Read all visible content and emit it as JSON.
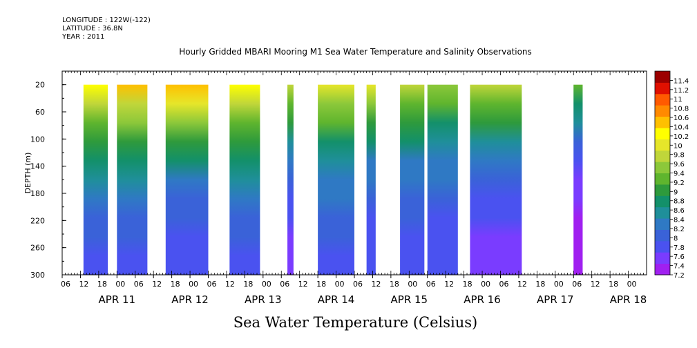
{
  "header": {
    "longitude": "LONGITUDE : 122W(-122)",
    "latitude": "LATITUDE : 36.8N",
    "year": "YEAR : 2011",
    "title": "Hourly Gridded MBARI Mooring M1 Sea Water Temperature and Salinity Observations"
  },
  "xaxis_title": "Sea Water Temperature (Celsius)",
  "colors": {
    "scale": [
      "#a020f0",
      "#7a3cff",
      "#4a52f0",
      "#3a62d8",
      "#2f79c4",
      "#1f8f9a",
      "#13906a",
      "#2e9a3c",
      "#5fb52e",
      "#8cc83a",
      "#c0d63a",
      "#e6e62a",
      "#ffff00",
      "#ffc000",
      "#ff8a00",
      "#ff5a00",
      "#e01000",
      "#9c0000"
    ]
  },
  "chart_data": {
    "type": "heatmap",
    "title": "Hourly Gridded MBARI Mooring M1 Sea Water Temperature and Salinity Observations",
    "xlabel": "Sea Water Temperature (Celsius)",
    "ylabel": "DEPTH (m)",
    "y_ticks": [
      20,
      60,
      100,
      140,
      180,
      220,
      260,
      300
    ],
    "ylim": [
      300,
      0
    ],
    "x_range_hours": [
      "2011-04-10T06:00",
      "2011-04-18T06:00"
    ],
    "x_tick_labels": [
      "06",
      "12",
      "18",
      "00",
      "06",
      "12",
      "18",
      "00",
      "06",
      "12",
      "18",
      "00",
      "06",
      "12",
      "18",
      "00",
      "06",
      "12",
      "18",
      "00",
      "06",
      "12",
      "18",
      "00",
      "06",
      "12",
      "18",
      "00",
      "06",
      "12",
      "18",
      "00"
    ],
    "date_labels": [
      "APR 11",
      "APR 12",
      "APR 13",
      "APR 14",
      "APR 15",
      "APR 16",
      "APR 17",
      "APR 18"
    ],
    "colorbar_labels": [
      "7.2",
      "7.4",
      "7.6",
      "7.8",
      "8",
      "8.2",
      "8.4",
      "8.6",
      "8.8",
      "9",
      "9.2",
      "9.4",
      "9.6",
      "9.8",
      "10",
      "10.2",
      "10.4",
      "10.6",
      "10.8",
      "11",
      "11.2",
      "11.4"
    ],
    "colorbar_range": [
      7.2,
      11.6
    ],
    "data_blocks": [
      {
        "start": "2011-04-10T13:00",
        "end": "2011-04-10T21:00",
        "surface": 10.3,
        "deep": 7.9
      },
      {
        "start": "2011-04-11T00:00",
        "end": "2011-04-11T10:00",
        "surface": 10.4,
        "deep": 7.9
      },
      {
        "start": "2011-04-11T16:00",
        "end": "2011-04-12T06:00",
        "surface": 10.6,
        "deep": 7.8
      },
      {
        "start": "2011-04-12T13:00",
        "end": "2011-04-12T23:00",
        "surface": 10.3,
        "deep": 7.9
      },
      {
        "start": "2011-04-13T08:00",
        "end": "2011-04-13T10:00",
        "surface": 9.8,
        "deep": 7.6
      },
      {
        "start": "2011-04-13T18:00",
        "end": "2011-04-14T06:00",
        "surface": 10.0,
        "deep": 7.9
      },
      {
        "start": "2011-04-14T10:00",
        "end": "2011-04-14T13:00",
        "surface": 9.9,
        "deep": 7.7
      },
      {
        "start": "2011-04-14T21:00",
        "end": "2011-04-15T05:00",
        "surface": 9.7,
        "deep": 7.8
      },
      {
        "start": "2011-04-15T06:00",
        "end": "2011-04-15T16:00",
        "surface": 9.6,
        "deep": 7.8
      },
      {
        "start": "2011-04-15T20:00",
        "end": "2011-04-16T13:00",
        "surface": 9.8,
        "deep": 7.6
      },
      {
        "start": "2011-04-17T06:00",
        "end": "2011-04-17T09:00",
        "surface": 9.3,
        "deep": 7.2
      }
    ]
  }
}
